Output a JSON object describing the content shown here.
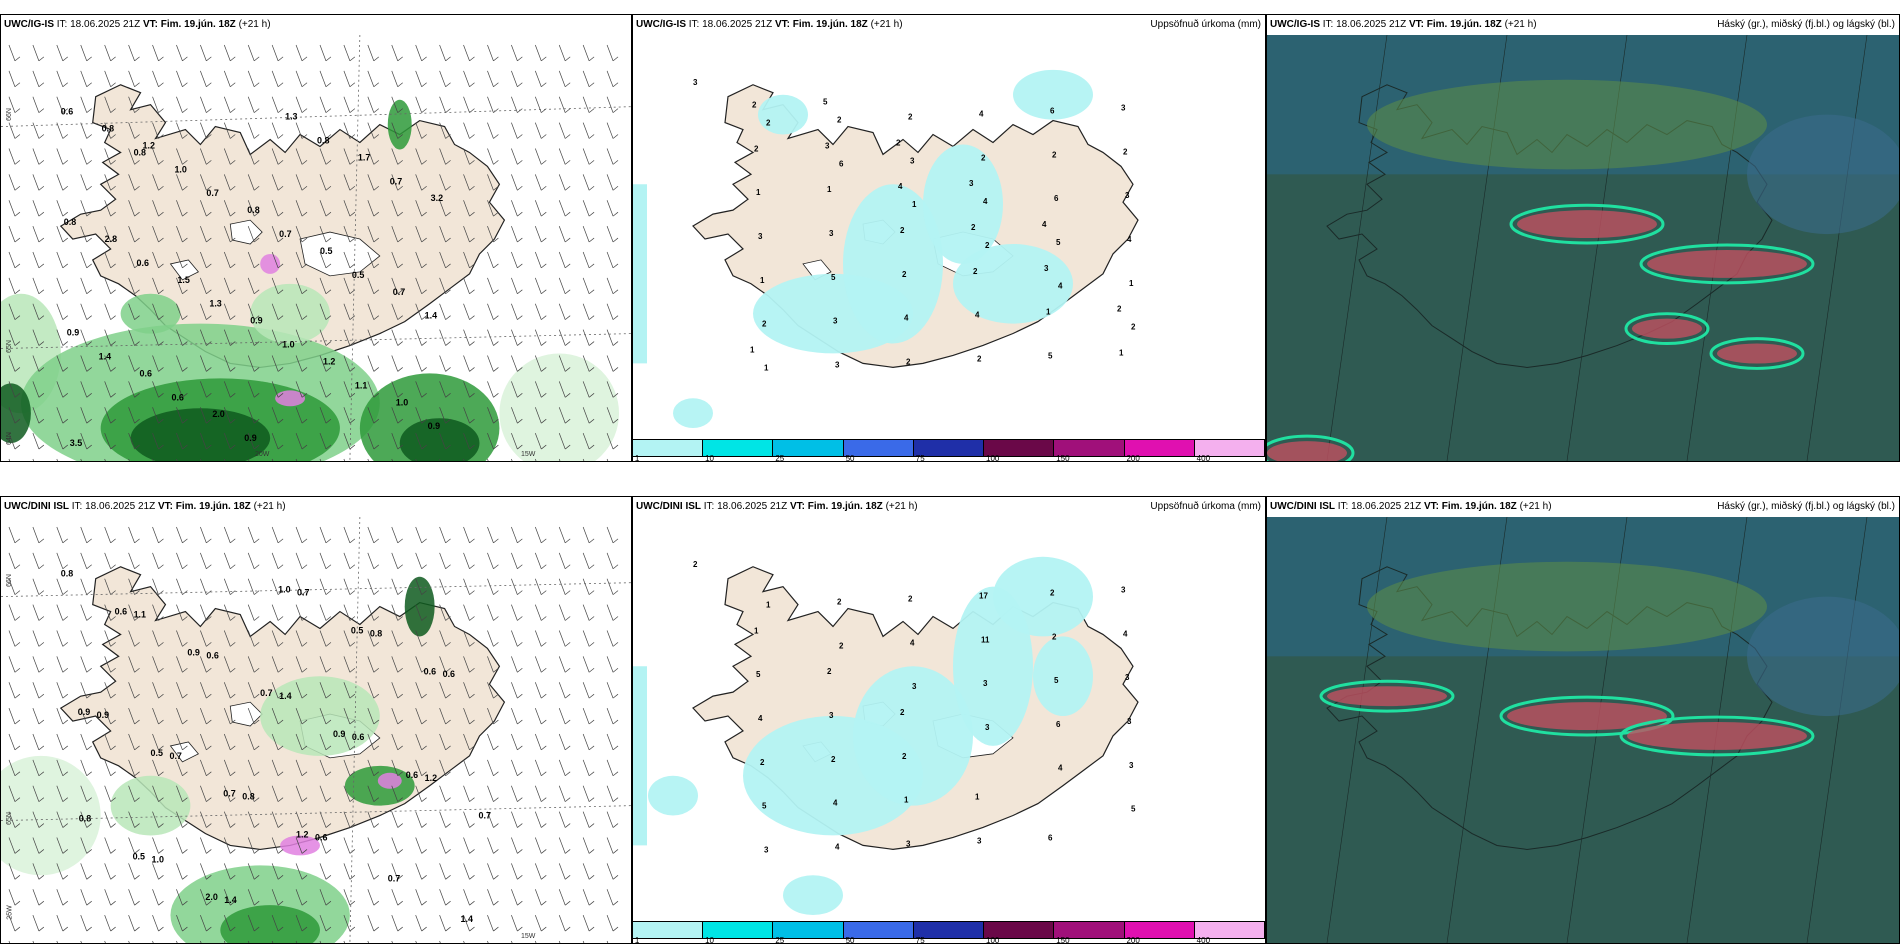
{
  "panels": [
    {
      "header": {
        "model": "UWC/IG-IS",
        "it_label": "IT:",
        "it": "18.06.2025 21Z",
        "vt_label": "VT:",
        "vt": "Fim. 19.jún. 18Z",
        "lead": "(+21 h)",
        "right": ""
      },
      "coords": {
        "lat1": "66N",
        "lat2": "65N",
        "lat3": "64N",
        "lon": "15W",
        "lon2": "20W"
      },
      "labels": [
        "0.6",
        "0.8",
        "0.7",
        "0.7",
        "0.5",
        "1.4",
        "1.4",
        "0.6",
        "0.9",
        "0.8",
        "0.7",
        "0.8",
        "0.6",
        "1.3",
        "1.0",
        "1.1",
        "0.9",
        "0.8",
        "1.0",
        "0.8",
        "0.5",
        "0.7",
        "0.9",
        "0.6",
        "2.0",
        "1.3",
        "1.7",
        "3.2",
        "2.8",
        "1.5",
        "0.9",
        "1.2",
        "1.0",
        "3.5",
        "1.2"
      ]
    },
    {
      "header": {
        "model": "UWC/IG-IS",
        "it_label": "IT:",
        "it": "18.06.2025 21Z",
        "vt_label": "VT:",
        "vt": "Fim. 19.jún. 18Z",
        "lead": "(+21 h)",
        "right": "Uppsöfnuð úrkoma (mm)"
      },
      "labels": [
        "3",
        "2",
        "6",
        "1",
        "2",
        "4",
        "2",
        "1",
        "2",
        "3",
        "4",
        "5",
        "1",
        "2",
        "3",
        "2",
        "2",
        "6",
        "4",
        "1",
        "3",
        "2",
        "4",
        "2",
        "3",
        "3",
        "5",
        "4",
        "2",
        "6",
        "2",
        "1",
        "3",
        "2",
        "4",
        "5",
        "3",
        "2",
        "1",
        "2",
        "2",
        "1",
        "1",
        "2",
        "3",
        "4",
        "2",
        "3",
        "2",
        "1",
        "5",
        "2",
        "3",
        "4"
      ]
    },
    {
      "header": {
        "model": "UWC/IG-IS",
        "it_label": "IT:",
        "it": "18.06.2025 21Z",
        "vt_label": "VT:",
        "vt": "Fim. 19.jún. 18Z",
        "lead": "(+21 h)",
        "right": "Háský (gr.), miðský (fj.bl.) og lágský (bl.)"
      }
    },
    {
      "header": {
        "model": "UWC/DINI ISL",
        "it_label": "IT:",
        "it": "18.06.2025 21Z",
        "vt_label": "VT:",
        "vt": "Fim. 19.jún. 18Z",
        "lead": "(+21 h)",
        "right": ""
      },
      "coords": {
        "lat1": "66N",
        "lat2": "65N",
        "lat3": "64N",
        "lon": "15W",
        "lon2": "25W"
      },
      "labels": [
        "0.8",
        "1.1",
        "0.6",
        "1.4",
        "0.6",
        "1.2",
        "0.8",
        "1.0",
        "1.4",
        "0.7",
        "0.8",
        "0.6",
        "0.9",
        "0.7",
        "0.8",
        "0.6",
        "0.7",
        "1.4",
        "0.6",
        "0.9",
        "0.7",
        "0.9",
        "0.6",
        "0.7",
        "0.5",
        "2.0",
        "1.0",
        "0.5",
        "0.6",
        "0.9",
        "0.5",
        "0.7",
        "1.2"
      ]
    },
    {
      "header": {
        "model": "UWC/DINI ISL",
        "it_label": "IT:",
        "it": "18.06.2025 21Z",
        "vt_label": "VT:",
        "vt": "Fim. 19.jún. 18Z",
        "lead": "(+21 h)",
        "right": "Uppsöfnuð úrkoma (mm)"
      },
      "labels": [
        "2",
        "1",
        "2",
        "3",
        "3",
        "4",
        "5",
        "3",
        "2",
        "4",
        "3",
        "6",
        "3",
        "5",
        "4",
        "2",
        "11",
        "5",
        "3",
        "2",
        "4",
        "3",
        "17",
        "2",
        "3",
        "4",
        "2",
        "1",
        "3",
        "2",
        "4",
        "5",
        "3",
        "2",
        "1",
        "6",
        "3",
        "1",
        "2",
        "2"
      ]
    },
    {
      "header": {
        "model": "UWC/DINI ISL",
        "it_label": "IT:",
        "it": "18.06.2025 21Z",
        "vt_label": "VT:",
        "vt": "Fim. 19.jún. 18Z",
        "lead": "(+21 h)",
        "right": "Háský (gr.), miðský (fj.bl.) og lágský (bl.)"
      }
    }
  ],
  "precip_scale": {
    "labels": [
      "1",
      "10",
      "25",
      "50",
      "75",
      "100",
      "150",
      "200",
      "400"
    ],
    "colors": [
      "#b3f3f3",
      "#00e5e5",
      "#00bfe6",
      "#3a6ae8",
      "#1f2fa8",
      "#6a0848",
      "#a0107a",
      "#e010b0",
      "#f4b0ee"
    ]
  },
  "colors": {
    "land": "#f2e6d8",
    "sea": "#ffffff",
    "cloud_dark": "#2f5a52",
    "cloud_blue": "#2a6a8a",
    "rain_green": "#2e9a3a"
  }
}
